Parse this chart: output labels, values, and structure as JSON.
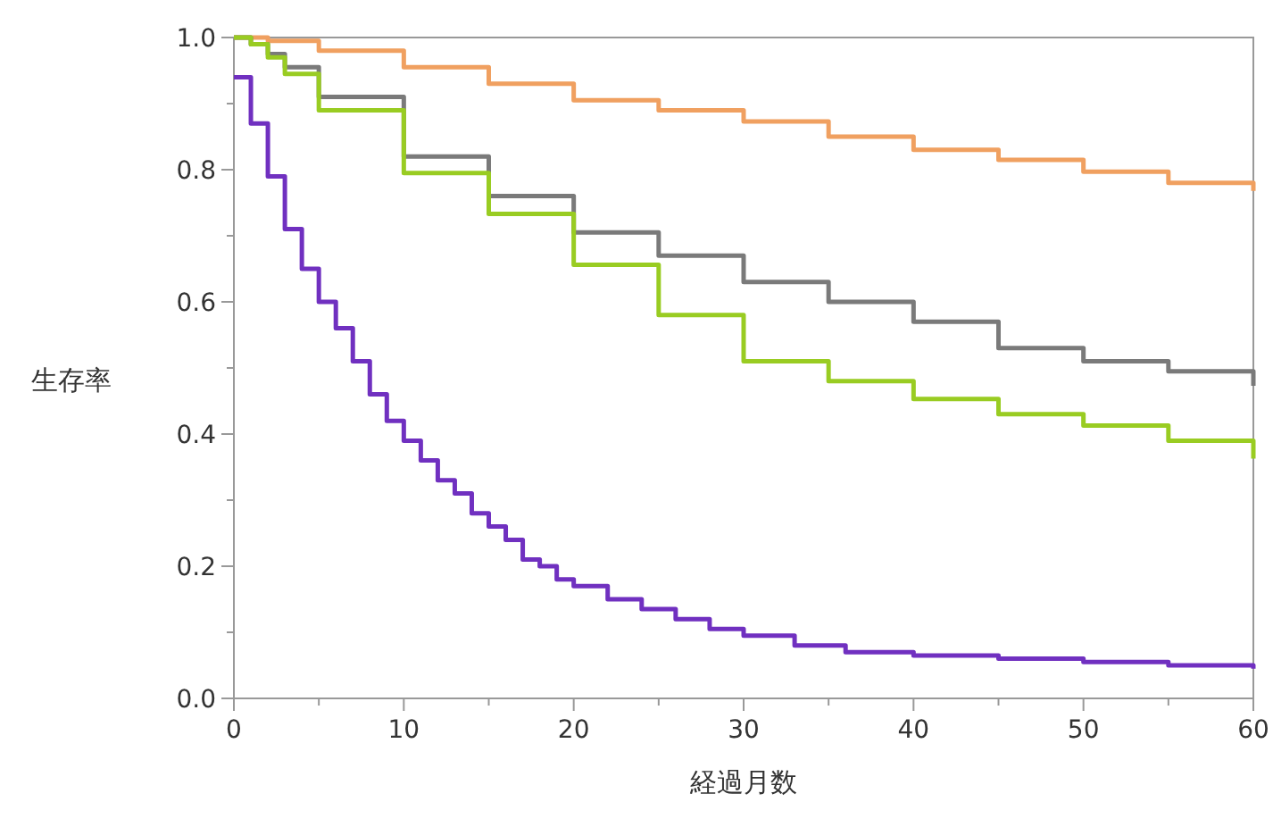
{
  "chart_data": {
    "type": "step",
    "xlabel": "経過月数",
    "ylabel": "生存率",
    "xlim": [
      0,
      60
    ],
    "ylim": [
      0,
      1
    ],
    "xticks": [
      0,
      {
        "value": 5,
        "label": null
      },
      10,
      {
        "value": 15,
        "label": null
      },
      20,
      {
        "value": 25,
        "label": null
      },
      30,
      {
        "value": 35,
        "label": null
      },
      40,
      {
        "value": 45,
        "label": null
      },
      50,
      {
        "value": 55,
        "label": null
      },
      60
    ],
    "yticks": [
      {
        "value": 0,
        "label": "0.0"
      },
      {
        "value": 0.1,
        "label": null
      },
      {
        "value": 0.2,
        "label": "0.2"
      },
      {
        "value": 0.3,
        "label": null
      },
      {
        "value": 0.4,
        "label": "0.4"
      },
      {
        "value": 0.5,
        "label": null
      },
      {
        "value": 0.6,
        "label": "0.6"
      },
      {
        "value": 0.7,
        "label": null
      },
      {
        "value": 0.8,
        "label": "0.8"
      },
      {
        "value": 0.9,
        "label": null
      },
      {
        "value": 1,
        "label": "1.0"
      }
    ],
    "series": [
      {
        "color": "#f0a060",
        "x": [
          0,
          2,
          5,
          10,
          15,
          20,
          25,
          30,
          35,
          40,
          45,
          50,
          55,
          60
        ],
        "values": [
          1.0,
          0.995,
          0.98,
          0.955,
          0.93,
          0.905,
          0.89,
          0.873,
          0.85,
          0.83,
          0.815,
          0.797,
          0.78,
          0.768
        ]
      },
      {
        "color": "#7a7a7a",
        "x": [
          0,
          1,
          2,
          3,
          5,
          10,
          15,
          20,
          25,
          30,
          35,
          40,
          45,
          50,
          55,
          60
        ],
        "values": [
          1.0,
          0.99,
          0.975,
          0.955,
          0.91,
          0.82,
          0.76,
          0.705,
          0.67,
          0.63,
          0.6,
          0.57,
          0.53,
          0.51,
          0.495,
          0.473
        ]
      },
      {
        "color": "#99cc22",
        "x": [
          0,
          1,
          2,
          3,
          5,
          10,
          15,
          20,
          25,
          30,
          35,
          40,
          45,
          50,
          55,
          60
        ],
        "values": [
          1.0,
          0.99,
          0.97,
          0.945,
          0.89,
          0.795,
          0.733,
          0.656,
          0.58,
          0.51,
          0.48,
          0.453,
          0.43,
          0.413,
          0.39,
          0.363
        ]
      },
      {
        "color": "#7030c0",
        "x": [
          0,
          1,
          2,
          3,
          4,
          5,
          6,
          7,
          8,
          9,
          10,
          11,
          12,
          13,
          14,
          15,
          16,
          17,
          18,
          19,
          20,
          22,
          24,
          26,
          28,
          30,
          33,
          36,
          40,
          45,
          50,
          55,
          60
        ],
        "values": [
          0.94,
          0.87,
          0.79,
          0.71,
          0.65,
          0.6,
          0.56,
          0.51,
          0.46,
          0.42,
          0.39,
          0.36,
          0.33,
          0.31,
          0.28,
          0.26,
          0.24,
          0.21,
          0.2,
          0.18,
          0.17,
          0.15,
          0.135,
          0.12,
          0.105,
          0.095,
          0.08,
          0.07,
          0.065,
          0.06,
          0.055,
          0.05,
          0.045
        ]
      }
    ]
  }
}
